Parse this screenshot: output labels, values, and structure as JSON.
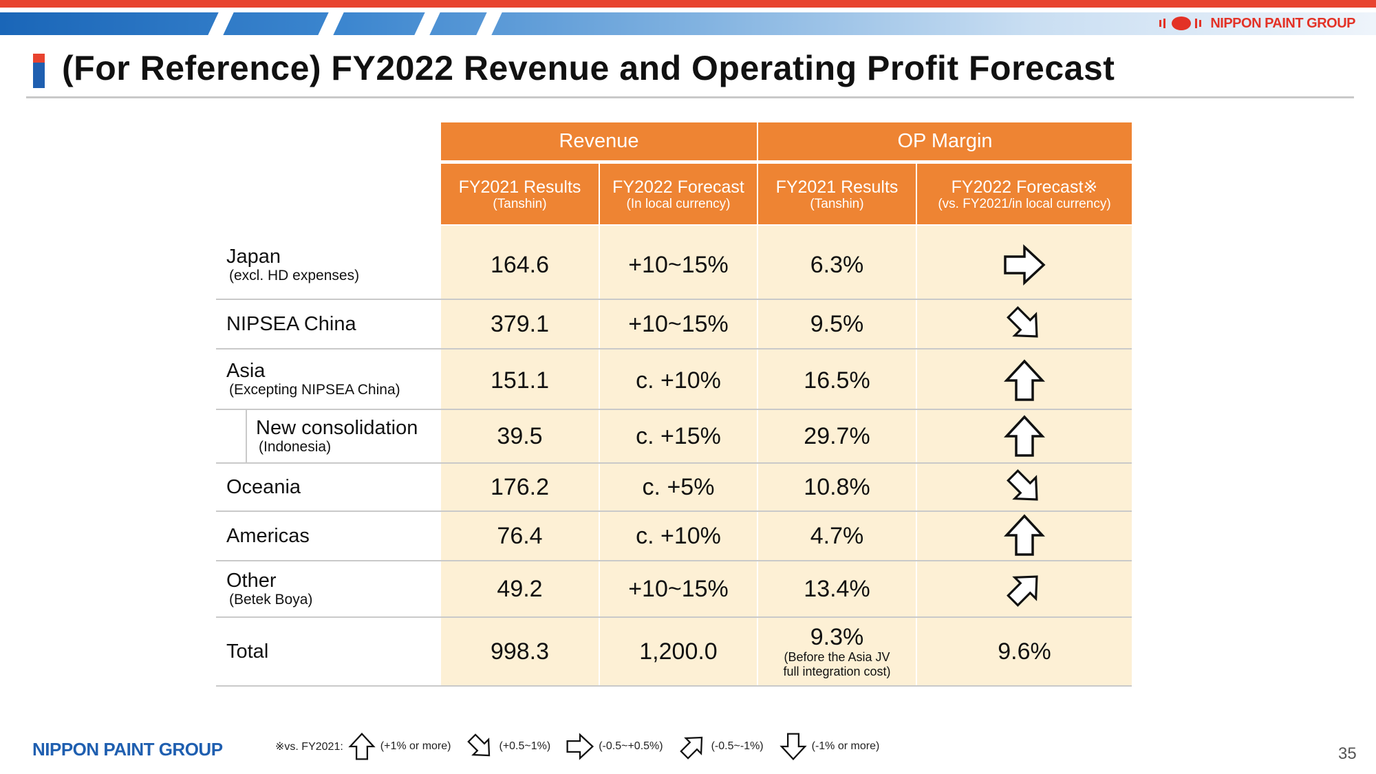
{
  "brand": {
    "top_logo": "NIPPON PAINT GROUP",
    "footer_logo": "NIPPON PAINT GROUP",
    "accent_red": "#e8432f",
    "accent_blue": "#1f5fb0",
    "header_orange": "#ee8433",
    "cell_fill": "#fdf0d5"
  },
  "title": "(For Reference) FY2022 Revenue and Operating Profit Forecast",
  "table": {
    "groups": {
      "revenue": "Revenue",
      "op_margin": "OP Margin"
    },
    "columns": [
      {
        "l1": "FY2021 Results",
        "l2": "(Tanshin)"
      },
      {
        "l1": "FY2022 Forecast",
        "l2": "(In local currency)"
      },
      {
        "l1": "FY2021 Results",
        "l2": "(Tanshin)"
      },
      {
        "l1": "FY2022 Forecast※",
        "l2": "(vs. FY2021/in local currency)"
      }
    ],
    "rows": [
      {
        "label": "Japan",
        "sub": "(excl. HD expenses)",
        "rev21": "164.6",
        "rev22": "+10~15%",
        "op21": "6.3%",
        "op22_icon": "arrow-right-icon"
      },
      {
        "label": "NIPSEA China",
        "sub": "",
        "rev21": "379.1",
        "rev22": "+10~15%",
        "op21": "9.5%",
        "op22_icon": "arrow-up-right-icon"
      },
      {
        "label": "Asia",
        "sub": "(Excepting NIPSEA China)",
        "rev21": "151.1",
        "rev22": "c. +10%",
        "op21": "16.5%",
        "op22_icon": "arrow-up-icon"
      },
      {
        "label": "New consolidation",
        "sub": "(Indonesia)",
        "rev21": "39.5",
        "rev22": "c. +15%",
        "op21": "29.7%",
        "op22_icon": "arrow-up-icon"
      },
      {
        "label": "Oceania",
        "sub": "",
        "rev21": "176.2",
        "rev22": "c. +5%",
        "op21": "10.8%",
        "op22_icon": "arrow-up-right-icon"
      },
      {
        "label": "Americas",
        "sub": "",
        "rev21": "76.4",
        "rev22": "c. +10%",
        "op21": "4.7%",
        "op22_icon": "arrow-up-icon"
      },
      {
        "label": "Other",
        "sub": "(Betek Boya)",
        "rev21": "49.2",
        "rev22": "+10~15%",
        "op21": "13.4%",
        "op22_icon": "arrow-down-right-icon"
      },
      {
        "label": "Total",
        "sub": "",
        "rev21": "998.3",
        "rev22": "1,200.0",
        "op21": "9.3%",
        "op21_note": "(Before the Asia JV full integration cost)",
        "op22": "9.6%"
      }
    ]
  },
  "legend": {
    "prefix": "※vs. FY2021:",
    "items": [
      {
        "icon": "arrow-up-icon",
        "label": "(+1% or more)"
      },
      {
        "icon": "arrow-up-right-icon",
        "label": "(+0.5~1%)"
      },
      {
        "icon": "arrow-right-icon",
        "label": "(-0.5~+0.5%)"
      },
      {
        "icon": "arrow-down-right-icon",
        "label": "(-0.5~-1%)"
      },
      {
        "icon": "arrow-down-icon",
        "label": "(-1% or more)"
      }
    ]
  },
  "page_number": "35"
}
